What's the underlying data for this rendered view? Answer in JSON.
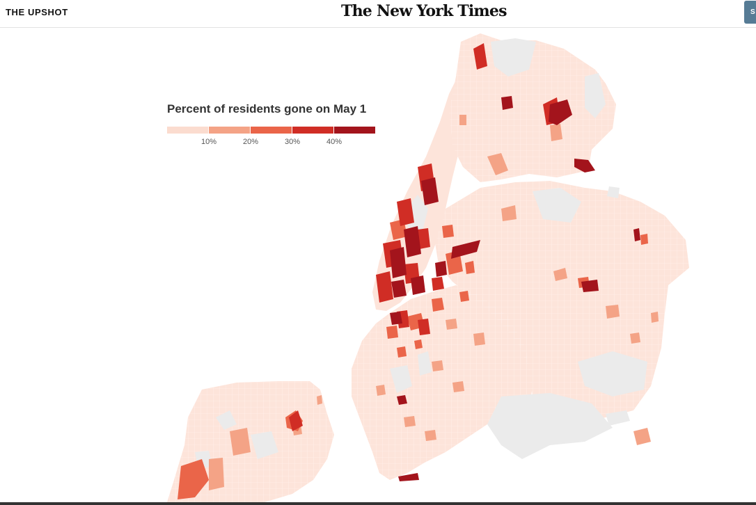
{
  "header": {
    "section_label": "THE UPSHOT",
    "masthead": "The New York Times",
    "corner_button_label": "S"
  },
  "legend": {
    "title": "Percent of residents gone on May 1",
    "bins": [
      {
        "color": "#fbdccf"
      },
      {
        "color": "#f4a386"
      },
      {
        "color": "#ea6549"
      },
      {
        "color": "#d02d25"
      },
      {
        "color": "#a3141c"
      }
    ],
    "ticks": [
      "10%",
      "20%",
      "30%",
      "40%"
    ]
  },
  "map": {
    "land_color": "#fde4da",
    "no_data_color": "#ebebeb",
    "water_color": "#ffffff"
  }
}
